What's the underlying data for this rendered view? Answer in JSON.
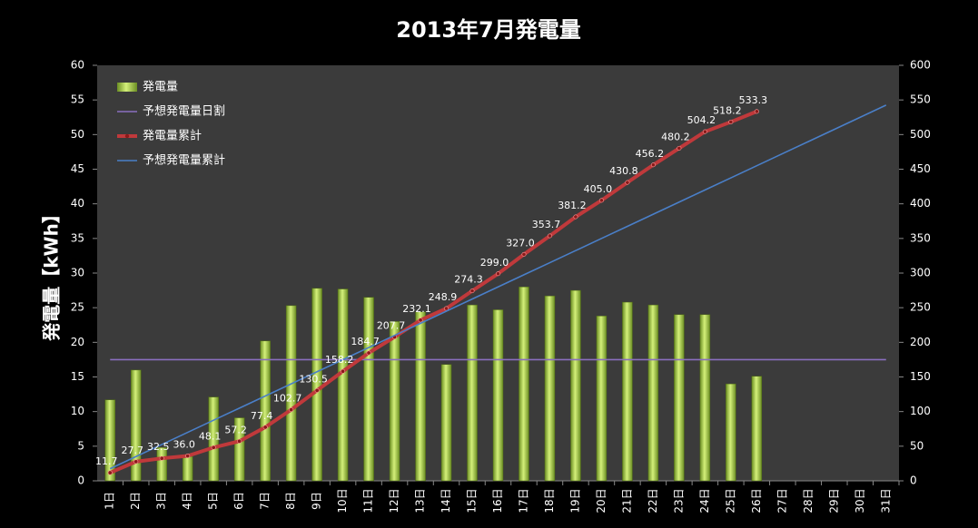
{
  "chart_data": {
    "type": "bar-line",
    "title": "2013年7月発電量",
    "y_label": "発電量【kWh】",
    "categories": [
      "1日",
      "2日",
      "3日",
      "4日",
      "5日",
      "6日",
      "7日",
      "8日",
      "9日",
      "10日",
      "11日",
      "12日",
      "13日",
      "14日",
      "15日",
      "16日",
      "17日",
      "18日",
      "19日",
      "20日",
      "21日",
      "22日",
      "23日",
      "24日",
      "25日",
      "26日",
      "27日",
      "28日",
      "29日",
      "30日",
      "31日"
    ],
    "series": [
      {
        "name": "発電量",
        "kind": "bar",
        "color": "#9acd32",
        "values": [
          11.7,
          16.0,
          4.8,
          3.5,
          12.1,
          9.1,
          20.2,
          25.3,
          27.8,
          27.7,
          26.5,
          23.0,
          24.4,
          16.8,
          25.4,
          24.7,
          28.0,
          26.7,
          27.5,
          23.8,
          25.8,
          25.4,
          24.0,
          24.0,
          14.0,
          15.1,
          null,
          null,
          null,
          null,
          null
        ]
      },
      {
        "name": "予想発電量日割",
        "kind": "line",
        "color": "#8a6fc0",
        "values": [
          17.5,
          17.5,
          17.5,
          17.5,
          17.5,
          17.5,
          17.5,
          17.5,
          17.5,
          17.5,
          17.5,
          17.5,
          17.5,
          17.5,
          17.5,
          17.5,
          17.5,
          17.5,
          17.5,
          17.5,
          17.5,
          17.5,
          17.5,
          17.5,
          17.5,
          17.5,
          17.5,
          17.5,
          17.5,
          17.5,
          17.5
        ]
      },
      {
        "name": "発電量累計",
        "kind": "line-marker",
        "color": "#c0393b",
        "axis": "y2",
        "values": [
          11.7,
          27.7,
          32.5,
          36.0,
          48.1,
          57.2,
          77.4,
          102.7,
          130.5,
          158.2,
          184.7,
          207.7,
          232.1,
          248.9,
          274.3,
          299.0,
          327.0,
          353.7,
          381.2,
          405.0,
          430.8,
          456.2,
          480.2,
          504.2,
          518.2,
          533.3,
          null,
          null,
          null,
          null,
          null
        ],
        "value_labels": [
          "11.7",
          "27.7",
          "32.5",
          "36.0",
          "48.1",
          "57.2",
          "77.4",
          "102.7",
          "130.5",
          "158.2",
          "184.7",
          "207.7",
          "232.1",
          "248.9",
          "274.3",
          "299.0",
          "327.0",
          "353.7",
          "381.2",
          "405.0",
          "430.8",
          "456.2",
          "480.2",
          "504.2",
          "518.2",
          "533.3",
          null,
          null,
          null,
          null,
          null
        ]
      },
      {
        "name": "予想発電量累計",
        "kind": "line",
        "color": "#4a7fc8",
        "axis": "y2",
        "values": [
          17.5,
          35,
          52.5,
          70,
          87.5,
          105,
          122.5,
          140,
          157.5,
          175,
          192.5,
          210,
          227.5,
          245,
          262.5,
          280,
          297.5,
          315,
          332.5,
          350,
          367.5,
          385,
          402.5,
          420,
          437.5,
          455,
          472.5,
          490,
          507.5,
          525,
          542.5
        ]
      }
    ],
    "ylim": [
      0,
      60
    ],
    "yticks": [
      0,
      5,
      10,
      15,
      20,
      25,
      30,
      35,
      40,
      45,
      50,
      55,
      60
    ],
    "y2lim": [
      0,
      600
    ],
    "y2ticks": [
      0,
      50,
      100,
      150,
      200,
      250,
      300,
      350,
      400,
      450,
      500,
      550,
      600
    ],
    "legend": "top-left"
  }
}
